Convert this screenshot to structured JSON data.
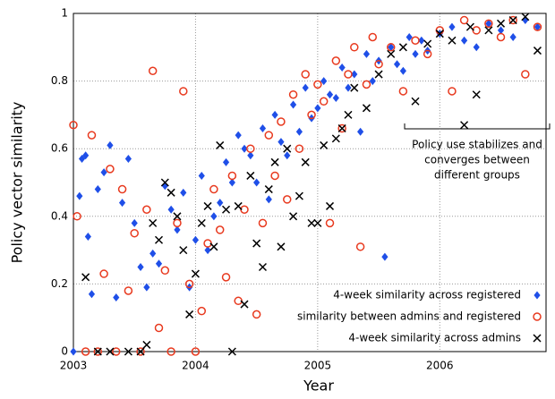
{
  "chart_data": {
    "type": "scatter",
    "x_label": "Year",
    "y_label": "Policy vector similarity",
    "xlim": [
      2003,
      2006.87
    ],
    "ylim": [
      0,
      1
    ],
    "xticks": [
      2003,
      2004,
      2005,
      2006
    ],
    "yticks": [
      0,
      0.2,
      0.4,
      0.6,
      0.8,
      1
    ],
    "grid": true,
    "legend": "lower right",
    "annotation": [
      "Policy use stabilizes and",
      "converges between",
      "different groups"
    ],
    "series": [
      {
        "name": "4-week similarity across registered",
        "color": "#1f4fe8",
        "marker": "diamond",
        "x": [
          2003.0,
          2003.05,
          2003.07,
          2003.1,
          2003.12,
          2003.15,
          2003.2,
          2003.25,
          2003.3,
          2003.35,
          2003.4,
          2003.45,
          2003.5,
          2003.55,
          2003.6,
          2003.65,
          2003.7,
          2003.75,
          2003.8,
          2003.85,
          2003.9,
          2003.95,
          2004.0,
          2004.05,
          2004.1,
          2004.15,
          2004.2,
          2004.25,
          2004.3,
          2004.35,
          2004.4,
          2004.45,
          2004.5,
          2004.55,
          2004.6,
          2004.65,
          2004.7,
          2004.75,
          2004.8,
          2004.85,
          2004.9,
          2004.95,
          2005.0,
          2005.05,
          2005.1,
          2005.15,
          2005.2,
          2005.25,
          2005.3,
          2005.35,
          2005.4,
          2005.45,
          2005.5,
          2005.55,
          2005.6,
          2005.65,
          2005.7,
          2005.75,
          2005.8,
          2005.85,
          2005.9,
          2006.0,
          2006.1,
          2006.2,
          2006.3,
          2006.4,
          2006.5,
          2006.6,
          2006.7,
          2006.8
        ],
        "values": [
          0,
          0.46,
          0.57,
          0.58,
          0.34,
          0.17,
          0.48,
          0.53,
          0.61,
          0.16,
          0.44,
          0.57,
          0.38,
          0.25,
          0.19,
          0.29,
          0.26,
          0.49,
          0.42,
          0.36,
          0.47,
          0.19,
          0.33,
          0.52,
          0.3,
          0.4,
          0.44,
          0.56,
          0.5,
          0.64,
          0.6,
          0.58,
          0.5,
          0.66,
          0.45,
          0.7,
          0.62,
          0.58,
          0.73,
          0.65,
          0.78,
          0.69,
          0.72,
          0.8,
          0.76,
          0.75,
          0.84,
          0.78,
          0.82,
          0.65,
          0.88,
          0.8,
          0.86,
          0.28,
          0.9,
          0.85,
          0.83,
          0.93,
          0.88,
          0.92,
          0.89,
          0.94,
          0.96,
          0.92,
          0.9,
          0.97,
          0.95,
          0.93,
          0.98,
          0.96
        ]
      },
      {
        "name": "similarity between admins and registered",
        "color": "#e8391e",
        "marker": "circle",
        "x": [
          2003.0,
          2003.03,
          2003.1,
          2003.15,
          2003.2,
          2003.25,
          2003.3,
          2003.35,
          2003.4,
          2003.45,
          2003.5,
          2003.55,
          2003.6,
          2003.65,
          2003.7,
          2003.75,
          2003.8,
          2003.85,
          2003.9,
          2003.95,
          2004.0,
          2004.05,
          2004.1,
          2004.15,
          2004.2,
          2004.25,
          2004.3,
          2004.35,
          2004.4,
          2004.45,
          2004.5,
          2004.55,
          2004.6,
          2004.65,
          2004.7,
          2004.75,
          2004.8,
          2004.85,
          2004.9,
          2004.95,
          2005.0,
          2005.05,
          2005.1,
          2005.15,
          2005.2,
          2005.25,
          2005.3,
          2005.35,
          2005.4,
          2005.45,
          2005.5,
          2005.6,
          2005.7,
          2005.8,
          2005.9,
          2006.0,
          2006.1,
          2006.2,
          2006.3,
          2006.4,
          2006.5,
          2006.6,
          2006.7,
          2006.8
        ],
        "values": [
          0.67,
          0.4,
          0,
          0.64,
          0,
          0.23,
          0.54,
          0,
          0.48,
          0.18,
          0.35,
          0,
          0.42,
          0.83,
          0.07,
          0.24,
          0,
          0.38,
          0.77,
          0.2,
          0,
          0.12,
          0.32,
          0.48,
          0.36,
          0.22,
          0.52,
          0.15,
          0.42,
          0.6,
          0.11,
          0.38,
          0.64,
          0.52,
          0.68,
          0.45,
          0.76,
          0.6,
          0.82,
          0.7,
          0.79,
          0.74,
          0.38,
          0.86,
          0.66,
          0.82,
          0.9,
          0.31,
          0.79,
          0.93,
          0.85,
          0.9,
          0.77,
          0.92,
          0.88,
          0.95,
          0.77,
          0.98,
          0.95,
          0.97,
          0.93,
          0.98,
          0.82,
          0.96
        ]
      },
      {
        "name": "4-week similarity across admins",
        "color": "#000000",
        "marker": "x",
        "x": [
          2003.1,
          2003.2,
          2003.3,
          2003.45,
          2003.55,
          2003.6,
          2003.65,
          2003.7,
          2003.75,
          2003.8,
          2003.85,
          2003.9,
          2003.95,
          2004.0,
          2004.05,
          2004.1,
          2004.15,
          2004.2,
          2004.25,
          2004.3,
          2004.35,
          2004.4,
          2004.45,
          2004.5,
          2004.55,
          2004.6,
          2004.65,
          2004.7,
          2004.75,
          2004.8,
          2004.85,
          2004.9,
          2004.95,
          2005.0,
          2005.05,
          2005.1,
          2005.15,
          2005.2,
          2005.25,
          2005.3,
          2005.4,
          2005.5,
          2005.6,
          2005.7,
          2005.8,
          2005.9,
          2006.0,
          2006.1,
          2006.2,
          2006.25,
          2006.3,
          2006.4,
          2006.5,
          2006.6,
          2006.7,
          2006.8
        ],
        "values": [
          0.22,
          0,
          0,
          0,
          0,
          0.02,
          0.38,
          0.33,
          0.5,
          0.47,
          0.4,
          0.3,
          0.11,
          0.23,
          0.38,
          0.43,
          0.31,
          0.61,
          0.42,
          0,
          0.43,
          0.14,
          0.52,
          0.32,
          0.25,
          0.48,
          0.56,
          0.31,
          0.6,
          0.4,
          0.46,
          0.56,
          0.38,
          0.38,
          0.61,
          0.43,
          0.63,
          0.66,
          0.7,
          0.78,
          0.72,
          0.82,
          0.88,
          0.9,
          0.74,
          0.91,
          0.94,
          0.92,
          0.67,
          0.96,
          0.76,
          0.95,
          0.97,
          0.98,
          0.99,
          0.89
        ]
      }
    ]
  }
}
